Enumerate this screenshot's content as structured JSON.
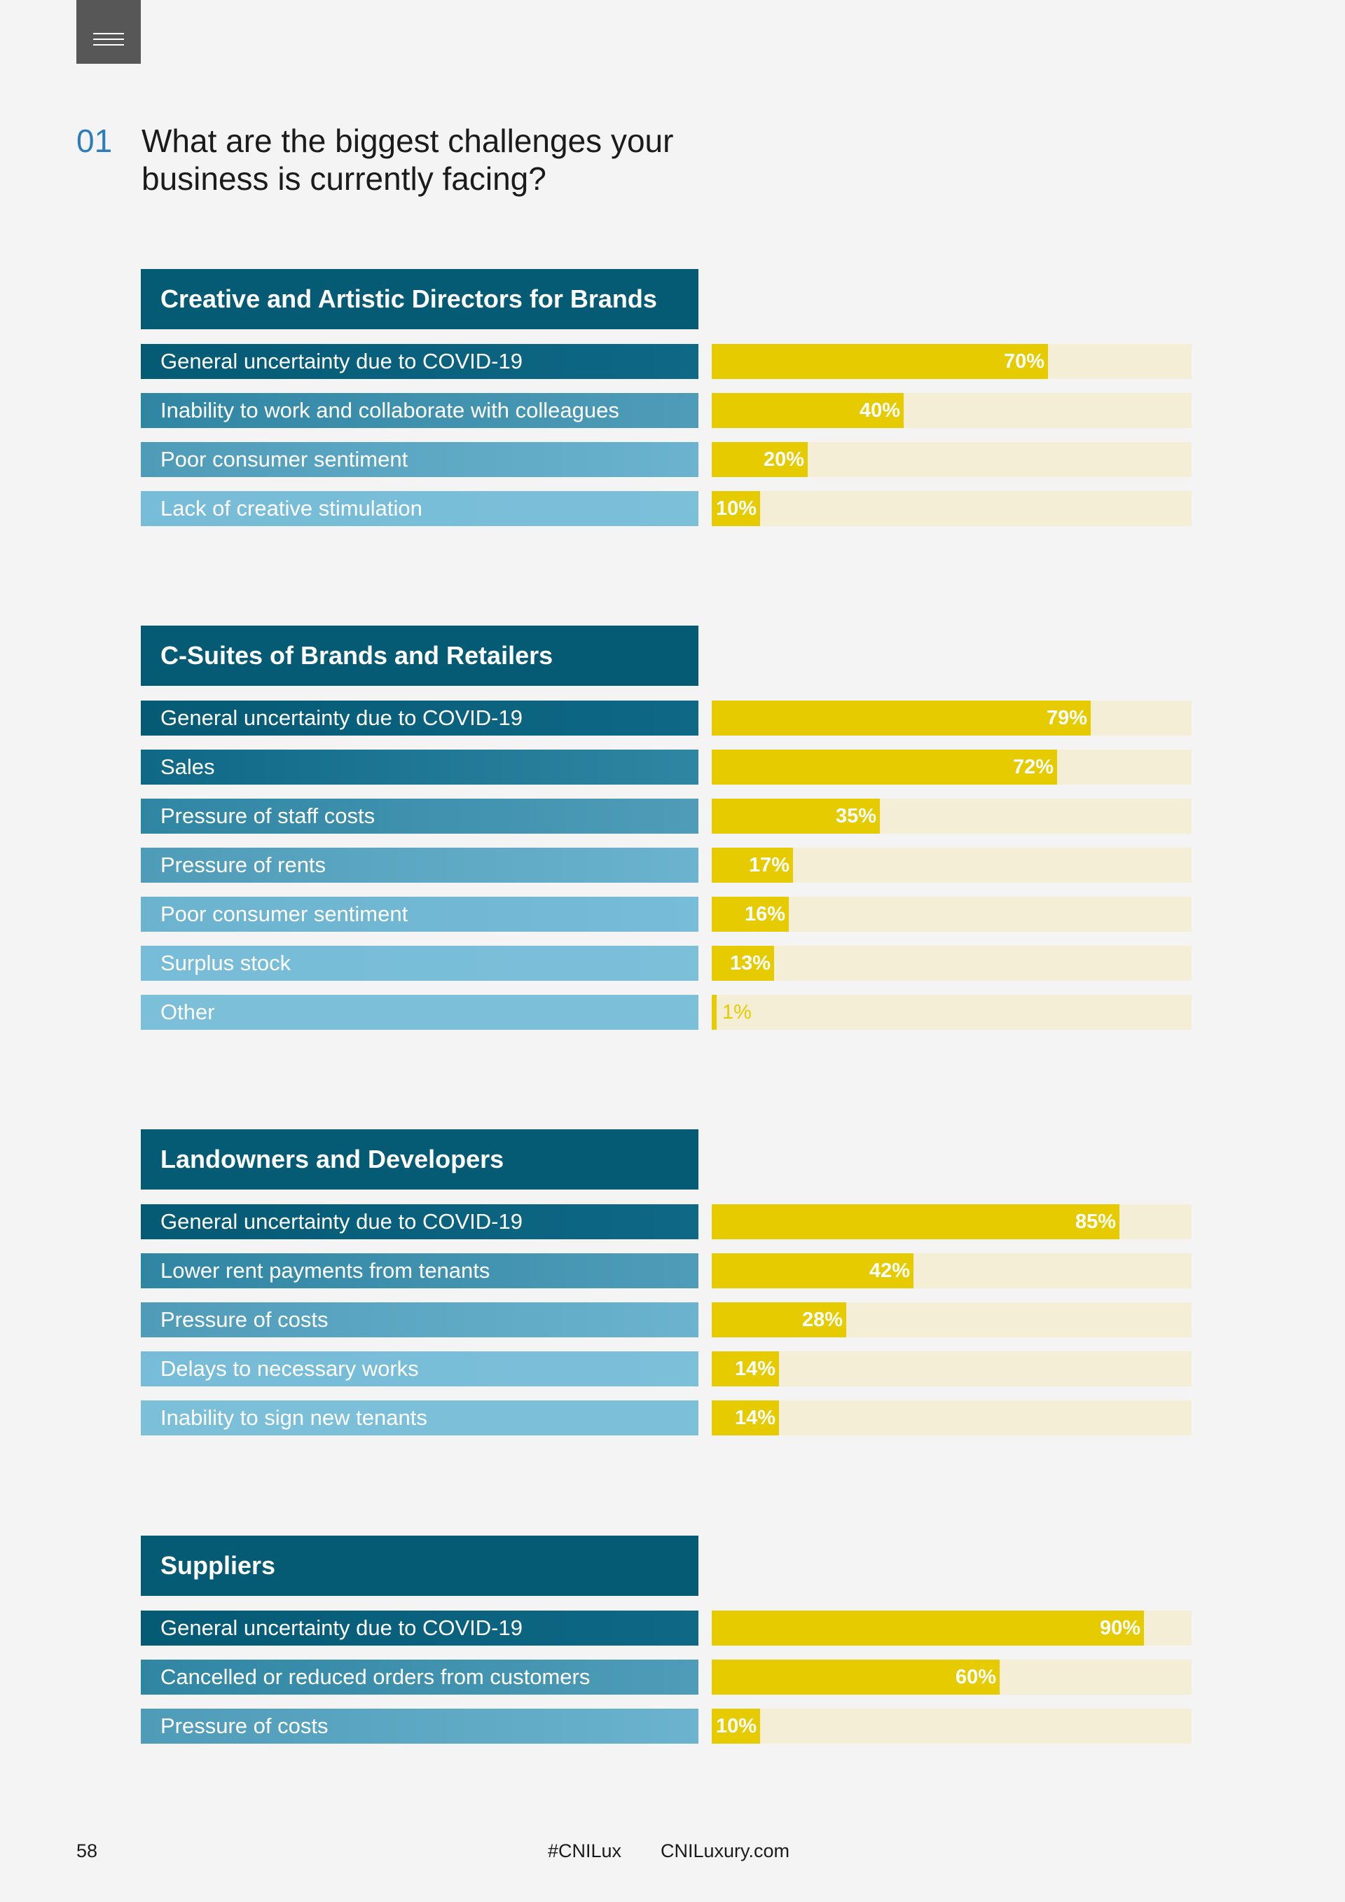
{
  "menu": {
    "icon": "hamburger-menu-icon"
  },
  "question": {
    "number": "01",
    "text": "What are the biggest challenges your business is currently facing?"
  },
  "colors": {
    "header_bg": "#055a74",
    "label_gradient": [
      "#055a74",
      "#0e6886",
      "#2f86a3",
      "#4f9cb8",
      "#6bb3cf",
      "#77bcd8",
      "#7bbfd9"
    ],
    "bar_fill": "#e5cb00",
    "bar_track": "#f3eed5",
    "accent": "#2e7dbb"
  },
  "chart_data": [
    {
      "type": "bar",
      "title": "Creative and Artistic Directors for Brands",
      "categories": [
        "General uncertainty due to COVID-19",
        "Inability to work and collaborate with colleagues",
        "Poor consumer sentiment",
        "Lack of creative stimulation"
      ],
      "values": [
        70,
        40,
        20,
        10
      ],
      "labels": [
        "70%",
        "40%",
        "20%",
        "10%"
      ],
      "ylim": [
        0,
        100
      ]
    },
    {
      "type": "bar",
      "title": "C-Suites of Brands and Retailers",
      "categories": [
        "General uncertainty due to COVID-19",
        "Sales",
        "Pressure of staff costs",
        "Pressure of rents",
        "Poor consumer sentiment",
        "Surplus stock",
        "Other"
      ],
      "values": [
        79,
        72,
        35,
        17,
        16,
        13,
        1
      ],
      "labels": [
        "79%",
        "72%",
        "35%",
        "17%",
        "16%",
        "13%",
        "1%"
      ],
      "ylim": [
        0,
        100
      ]
    },
    {
      "type": "bar",
      "title": "Landowners and Developers",
      "categories": [
        "General uncertainty due to COVID-19",
        "Lower rent payments from tenants",
        "Pressure of costs",
        "Delays to necessary works",
        "Inability to sign new tenants"
      ],
      "values": [
        85,
        42,
        28,
        14,
        14
      ],
      "labels": [
        "85%",
        "42%",
        "28%",
        "14%",
        "14%"
      ],
      "ylim": [
        0,
        100
      ]
    },
    {
      "type": "bar",
      "title": "Suppliers",
      "categories": [
        "General uncertainty due to COVID-19",
        "Cancelled or reduced orders from customers",
        "Pressure of costs"
      ],
      "values": [
        90,
        60,
        10
      ],
      "labels": [
        "90%",
        "60%",
        "10%"
      ],
      "ylim": [
        0,
        100
      ]
    }
  ],
  "footer": {
    "page_number": "58",
    "hashtag": "#CNILux",
    "website": "CNILuxury.com"
  }
}
